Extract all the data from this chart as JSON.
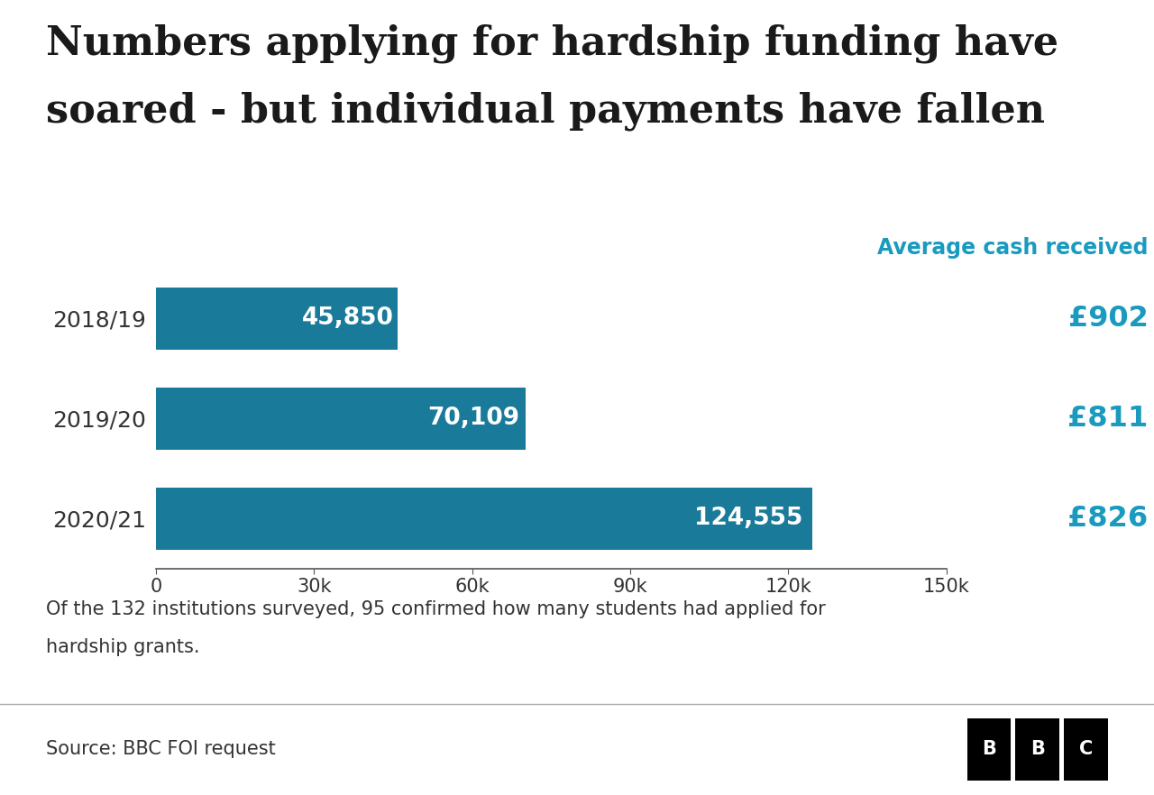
{
  "title_line1": "Numbers applying for hardship funding have",
  "title_line2": "soared - but individual payments have fallen",
  "categories": [
    "2018/19",
    "2019/20",
    "2020/21"
  ],
  "values": [
    45850,
    70109,
    124555
  ],
  "bar_labels": [
    "45,850",
    "70,109",
    "124,555"
  ],
  "avg_cash_label": "Average cash received",
  "avg_cash_values": [
    "£902",
    "£811",
    "£826"
  ],
  "bar_color": "#1a7a9a",
  "teal_color": "#1a9abf",
  "title_color": "#1a1a1a",
  "text_color": "#333333",
  "background_color": "#ffffff",
  "footnote_line1": "Of the 132 institutions surveyed, 95 confirmed how many students had applied for",
  "footnote_line2": "hardship grants.",
  "source": "Source: BBC FOI request",
  "xlim": [
    0,
    150000
  ],
  "xticks": [
    0,
    30000,
    60000,
    90000,
    120000,
    150000
  ],
  "xtick_labels": [
    "0",
    "30k",
    "60k",
    "90k",
    "120k",
    "150k"
  ],
  "bar_height": 0.62,
  "title_fontsize": 32,
  "label_fontsize": 18,
  "tick_fontsize": 15,
  "avg_header_fontsize": 17,
  "avg_value_fontsize": 23,
  "footnote_fontsize": 15,
  "source_fontsize": 15
}
